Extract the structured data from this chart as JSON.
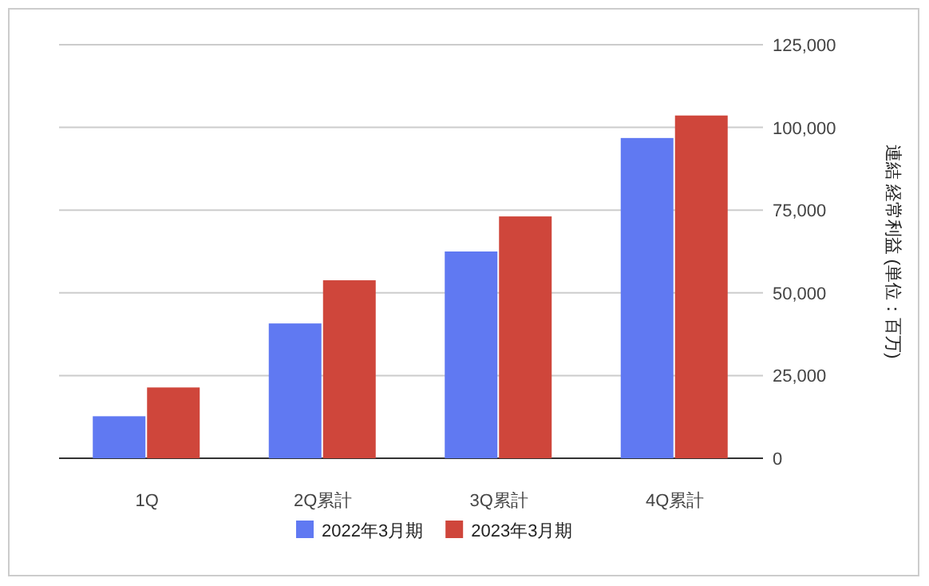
{
  "chart_data": {
    "type": "bar",
    "categories": [
      "1Q",
      "2Q累計",
      "3Q累計",
      "4Q累計"
    ],
    "series": [
      {
        "name": "2022年3月期",
        "color": "#6079f2",
        "values": [
          12700,
          40750,
          62500,
          96800
        ]
      },
      {
        "name": "2023年3月期",
        "color": "#cf463b",
        "values": [
          21400,
          53800,
          73100,
          103600
        ]
      }
    ],
    "ylabel": "連結 経常利益 (単位：百万)",
    "ylim": [
      0,
      125000
    ],
    "yticks": [
      {
        "value": 0,
        "label": "0"
      },
      {
        "value": 25000,
        "label": "25,000"
      },
      {
        "value": 50000,
        "label": "50,000"
      },
      {
        "value": 75000,
        "label": "75,000"
      },
      {
        "value": 100000,
        "label": "100,000"
      },
      {
        "value": 125000,
        "label": "125,000"
      }
    ],
    "grid": "y",
    "legend": "bottom"
  }
}
